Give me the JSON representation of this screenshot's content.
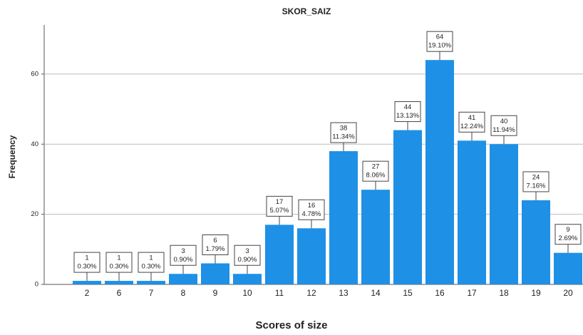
{
  "chart_data": {
    "type": "bar",
    "title": "SKOR_SAIZ",
    "x_label": "Scores of size",
    "y_label": "Frequency",
    "categories": [
      "2",
      "6",
      "7",
      "8",
      "9",
      "10",
      "11",
      "12",
      "13",
      "14",
      "15",
      "16",
      "17",
      "18",
      "19",
      "20"
    ],
    "values": [
      1,
      1,
      1,
      3,
      6,
      3,
      17,
      16,
      38,
      27,
      44,
      64,
      41,
      40,
      24,
      9
    ],
    "percent_labels": [
      "0.30%",
      "0.30%",
      "0.30%",
      "0.90%",
      "1.79%",
      "0.90%",
      "5.07%",
      "4.78%",
      "11.34%",
      "8.06%",
      "13.13%",
      "19.10%",
      "12.24%",
      "11.94%",
      "7.16%",
      "2.69%"
    ],
    "color": "#1e90e6",
    "ylim": [
      0,
      74
    ],
    "yticks": [
      0,
      20,
      40,
      60
    ],
    "grid": true
  }
}
